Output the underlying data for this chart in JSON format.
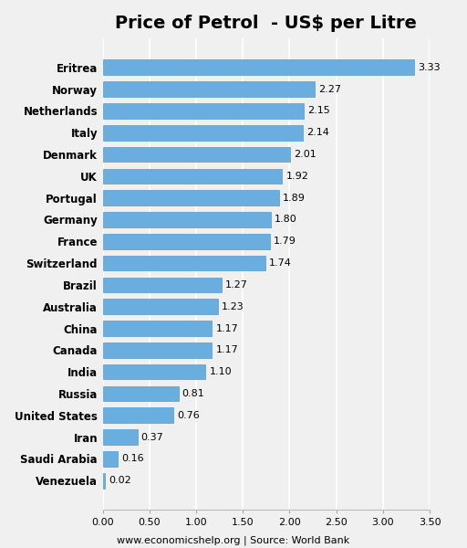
{
  "title": "Price of Petrol  - US$ per Litre",
  "countries": [
    "Venezuela",
    "Saudi Arabia",
    "Iran",
    "United States",
    "Russia",
    "India",
    "Canada",
    "China",
    "Australia",
    "Brazil",
    "Switzerland",
    "France",
    "Germany",
    "Portugal",
    "UK",
    "Denmark",
    "Italy",
    "Netherlands",
    "Norway",
    "Eritrea"
  ],
  "values": [
    0.02,
    0.16,
    0.37,
    0.76,
    0.81,
    1.1,
    1.17,
    1.17,
    1.23,
    1.27,
    1.74,
    1.79,
    1.8,
    1.89,
    1.92,
    2.01,
    2.14,
    2.15,
    2.27,
    3.33
  ],
  "bar_color": "#6aaddf",
  "bar_edge_color": "#5599cc",
  "background_color": "#f0f0f0",
  "plot_bg_color": "#f0f0f0",
  "text_color": "#000000",
  "grid_color": "#ffffff",
  "xlim": [
    0,
    3.5
  ],
  "xticks": [
    0.0,
    0.5,
    1.0,
    1.5,
    2.0,
    2.5,
    3.0,
    3.5
  ],
  "xtick_labels": [
    "0.00",
    "0.50",
    "1.00",
    "1.50",
    "2.00",
    "2.50",
    "3.00",
    "3.50"
  ],
  "footer": "www.economicshelp.org | Source: World Bank",
  "title_fontsize": 14,
  "label_fontsize": 8.5,
  "tick_fontsize": 8,
  "footer_fontsize": 8,
  "value_fontsize": 8
}
